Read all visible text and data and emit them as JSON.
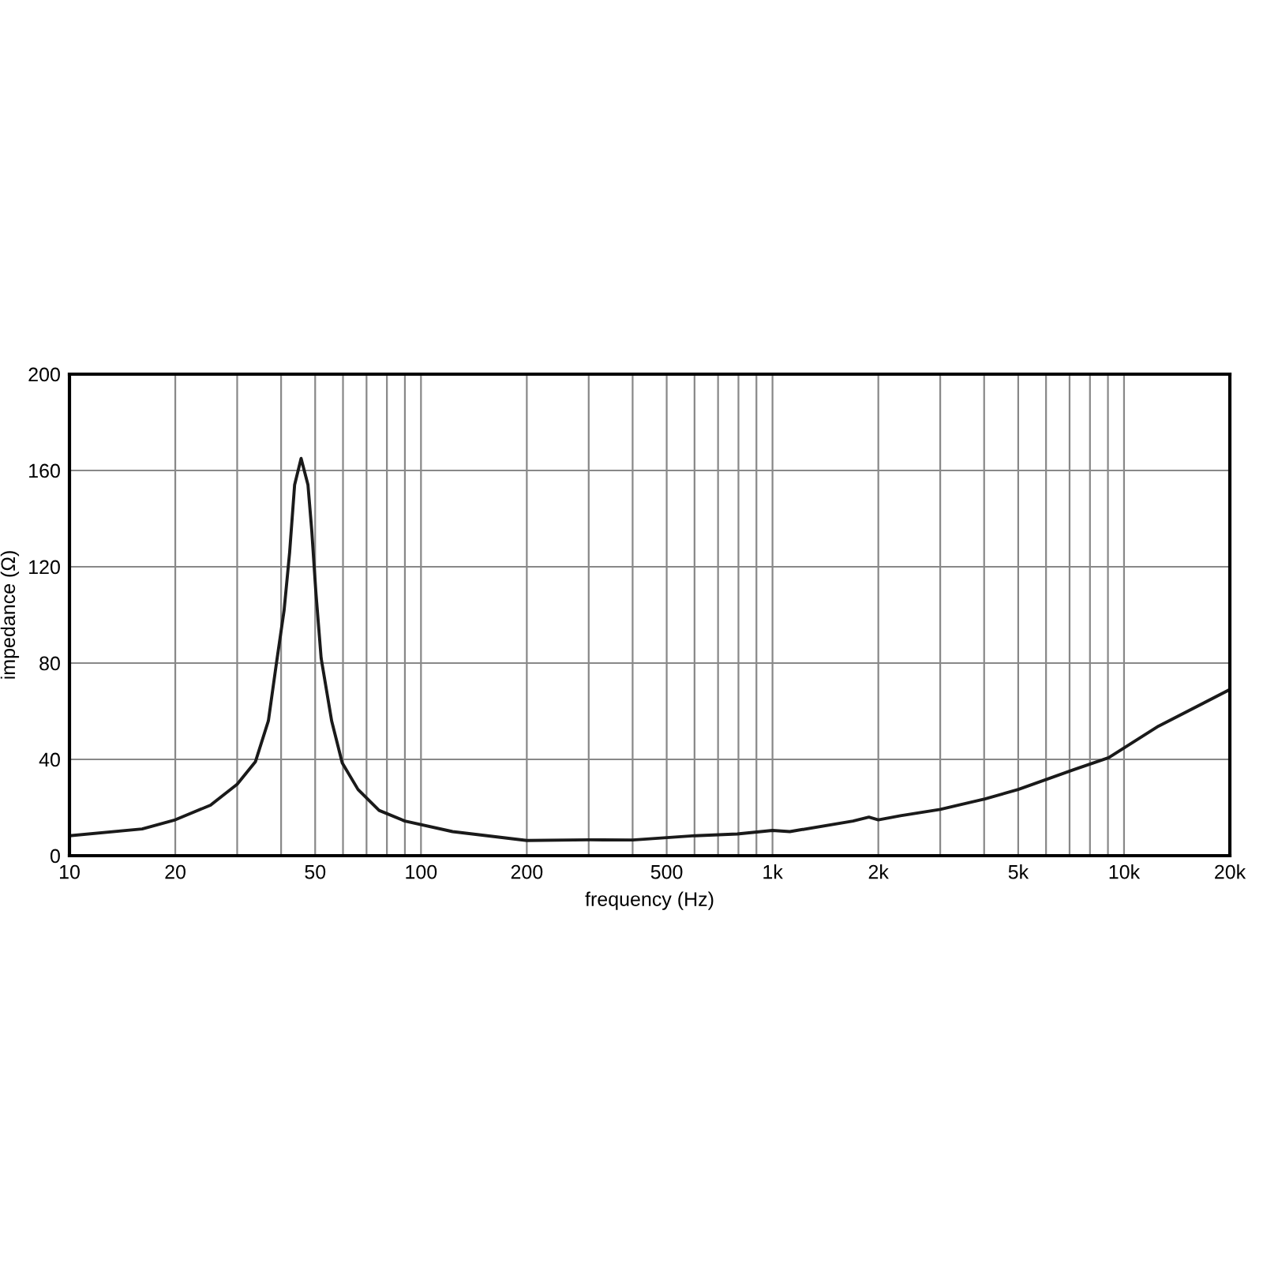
{
  "chart_data": {
    "type": "line",
    "xlabel": "frequency (Hz)",
    "ylabel": "impedance (Ω)",
    "log": "x",
    "grid": true,
    "xlim": [
      10,
      20000
    ],
    "ylim": [
      0,
      200
    ],
    "yticks": [
      0,
      40,
      80,
      120,
      160,
      200
    ],
    "xticks": [
      10,
      20,
      {
        "value": 30,
        "label": null
      },
      {
        "value": 40,
        "label": null
      },
      50,
      {
        "value": 60,
        "label": null
      },
      {
        "value": 70,
        "label": null
      },
      {
        "value": 80,
        "label": null
      },
      {
        "value": 90,
        "label": null
      },
      100,
      200,
      {
        "value": 300,
        "label": null
      },
      {
        "value": 400,
        "label": null
      },
      500,
      {
        "value": 600,
        "label": null
      },
      {
        "value": 700,
        "label": null
      },
      {
        "value": 800,
        "label": null
      },
      {
        "value": 900,
        "label": null
      },
      {
        "value": 1000,
        "label": "1k"
      },
      {
        "value": 2000,
        "label": "2k"
      },
      {
        "value": 3000,
        "label": null
      },
      {
        "value": 4000,
        "label": null
      },
      {
        "value": 5000,
        "label": "5k"
      },
      {
        "value": 6000,
        "label": null
      },
      {
        "value": 7000,
        "label": null
      },
      {
        "value": 8000,
        "label": null
      },
      {
        "value": 9000,
        "label": null
      },
      {
        "value": 10000,
        "label": "10k"
      },
      {
        "value": 20000,
        "label": "20k"
      }
    ],
    "series": [
      {
        "color": "#1a1a1a",
        "x": [
          10,
          16.1,
          20,
          25.2,
          30,
          33.8,
          36.8,
          38.8,
          40.8,
          42.3,
          43.7,
          45.6,
          47.7,
          48.9,
          50.2,
          52,
          55.7,
          59.7,
          66.2,
          76,
          90,
          123,
          200,
          302,
          400,
          603,
          794,
          1000,
          1120,
          1694,
          1880,
          2000,
          2312,
          3000,
          4020,
          5000,
          7210,
          9040,
          12530,
          20000
        ],
        "values": [
          8.3,
          11.1,
          14.9,
          21,
          29.7,
          39,
          56,
          80,
          102,
          126,
          154,
          165,
          154,
          135,
          110,
          82,
          56,
          38.5,
          27.5,
          18.8,
          14.4,
          10,
          6.3,
          6.6,
          6.5,
          8.3,
          9,
          10.5,
          10,
          14.4,
          16,
          14.9,
          16.6,
          19.2,
          23.6,
          27.5,
          35.8,
          40.7,
          53.8,
          69
        ]
      }
    ]
  }
}
